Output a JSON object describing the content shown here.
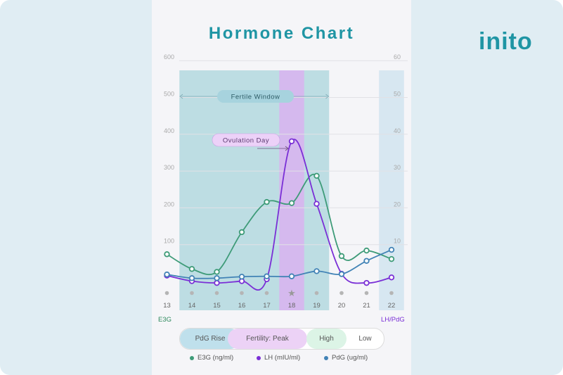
{
  "app": {
    "title": "Hormone Chart",
    "brand": "inito"
  },
  "colors": {
    "e3g": "#3e9b78",
    "lh": "#7a2fd6",
    "pdg": "#4283b6",
    "teal_title": "#1f95a4"
  },
  "chart_data": {
    "type": "line",
    "title": "Hormone Chart",
    "x": [
      13,
      14,
      15,
      16,
      17,
      18,
      19,
      20,
      21,
      22
    ],
    "left_axis": {
      "label": "E3G",
      "ticks": [
        100,
        200,
        300,
        400,
        500,
        600
      ],
      "ylim": [
        0,
        600
      ]
    },
    "right_axis": {
      "label": "LH/PdG",
      "ticks": [
        10,
        20,
        30,
        40,
        50,
        60
      ],
      "ylim": [
        0,
        60
      ]
    },
    "series": [
      {
        "name": "E3G (ng/ml)",
        "axis": "left",
        "values": [
          93,
          53,
          45,
          153,
          235,
          232,
          306,
          88,
          103,
          80
        ]
      },
      {
        "name": "LH (mIU/ml)",
        "axis": "right",
        "values": [
          3.5,
          2,
          1.5,
          2,
          2.5,
          40,
          23,
          4,
          1.5,
          3
        ]
      },
      {
        "name": "PdG (ug/ml)",
        "axis": "right",
        "values": [
          3.8,
          2.8,
          2.8,
          3.2,
          3.3,
          3.3,
          4.7,
          3.9,
          7.5,
          10.5
        ]
      }
    ],
    "annotations": {
      "fertile_window": {
        "label": "Fertile Window",
        "from": 14,
        "to": 19
      },
      "ovulation_day": {
        "label": "Ovulation Day",
        "day": 18
      },
      "pdg_rise_day": 22
    },
    "grid": true
  },
  "phases": [
    {
      "label": "PdG Rise",
      "color": "#bfe0ec"
    },
    {
      "label": "Fertility: Peak",
      "color": "#ecd2f6"
    },
    {
      "label": "High",
      "color": "#dcf4e6"
    },
    {
      "label": "Low",
      "color": "#ffffff"
    }
  ]
}
